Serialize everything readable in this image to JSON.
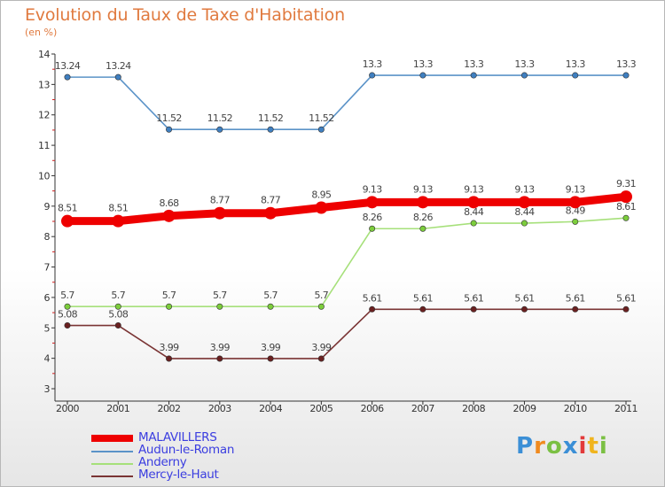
{
  "chart_data": {
    "type": "line",
    "title": "Evolution du Taux de Taxe d'Habitation",
    "subtitle": "(en %)",
    "ylim": [
      3,
      14
    ],
    "yticks": [
      3,
      4,
      5,
      6,
      7,
      8,
      9,
      10,
      11,
      12,
      13,
      14
    ],
    "x": [
      "2000",
      "2001",
      "2002",
      "2003",
      "2004",
      "2005",
      "2006",
      "2007",
      "2008",
      "2009",
      "2010",
      "2011"
    ],
    "series": [
      {
        "name": "Audun-le-Roman",
        "color": "#5b93c8",
        "dot": "#3f7fc0",
        "values": [
          13.24,
          13.24,
          11.52,
          11.52,
          11.52,
          11.52,
          13.3,
          13.3,
          13.3,
          13.3,
          13.3,
          13.3
        ],
        "labels": [
          "13.24",
          "13.24",
          "11.52",
          "11.52",
          "11.52",
          "11.52",
          "13.3",
          "13.3",
          "13.3",
          "13.3",
          "13.3",
          "13.3"
        ]
      },
      {
        "name": "MALAVILLERS",
        "color": "#ee0000",
        "dot": "#ee0000",
        "values": [
          8.51,
          8.51,
          8.68,
          8.77,
          8.77,
          8.95,
          9.13,
          9.13,
          9.13,
          9.13,
          9.13,
          9.31
        ],
        "labels": [
          "8.51",
          "8.51",
          "8.68",
          "8.77",
          "8.77",
          "8.95",
          "9.13",
          "9.13",
          "9.13",
          "9.13",
          "9.13",
          "9.31"
        ]
      },
      {
        "name": "Anderny",
        "color": "#a6e07a",
        "dot": "#7ccd3c",
        "values": [
          5.7,
          5.7,
          5.7,
          5.7,
          5.7,
          5.7,
          8.26,
          8.26,
          8.44,
          8.44,
          8.49,
          8.61
        ],
        "labels": [
          "5.7",
          "5.7",
          "5.7",
          "5.7",
          "5.7",
          "5.7",
          "8.26",
          "8.26",
          "8.44",
          "8.44",
          "8.49",
          "8.61"
        ]
      },
      {
        "name": "Mercy-le-Haut",
        "color": "#7a3434",
        "dot": "#6a2020",
        "values": [
          5.08,
          5.08,
          3.99,
          3.99,
          3.99,
          3.99,
          5.61,
          5.61,
          5.61,
          5.61,
          5.61,
          5.61
        ],
        "labels": [
          "5.08",
          "5.08",
          "3.99",
          "3.99",
          "3.99",
          "3.99",
          "5.61",
          "5.61",
          "5.61",
          "5.61",
          "5.61",
          "5.61"
        ]
      }
    ],
    "legend": [
      "MALAVILLERS",
      "Audun-le-Roman",
      "Anderny",
      "Mercy-le-Haut"
    ]
  },
  "logo": {
    "text": "Proxiti",
    "letters": [
      "P",
      "r",
      "o",
      "x",
      "i",
      "t",
      "i"
    ],
    "colors": [
      "#3b8fd6",
      "#f08a1e",
      "#7bc043",
      "#3b8fd6",
      "#e23a3a",
      "#f0b41e",
      "#7bc043"
    ]
  }
}
